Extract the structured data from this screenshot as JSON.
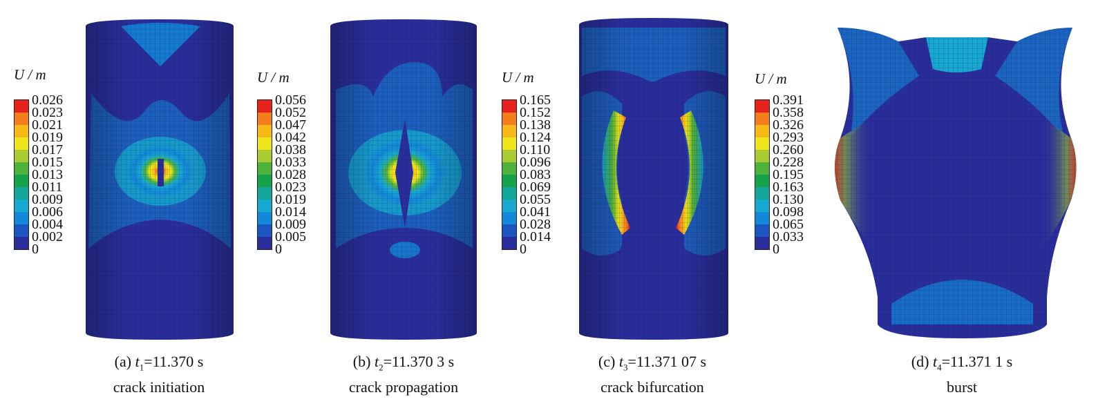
{
  "colors": [
    "#2a2e9a",
    "#1c55bf",
    "#1288d8",
    "#18a8d0",
    "#13a79a",
    "#16a24a",
    "#4db33c",
    "#a8cb32",
    "#eee51a",
    "#f8b917",
    "#f47d1c",
    "#e8221e"
  ],
  "panels": [
    {
      "legend_title": "U / m",
      "ticks": [
        "0.026",
        "0.023",
        "0.021",
        "0.019",
        "0.017",
        "0.015",
        "0.013",
        "0.011",
        "0.009",
        "0.006",
        "0.004",
        "0.002",
        "0"
      ],
      "caption_label": "(a)",
      "time_var": "t",
      "time_sub": "1",
      "time_value": "=11.370 s",
      "stage": "crack initiation"
    },
    {
      "legend_title": "U / m",
      "ticks": [
        "0.056",
        "0.052",
        "0.047",
        "0.042",
        "0.038",
        "0.033",
        "0.028",
        "0.023",
        "0.019",
        "0.014",
        "0.009",
        "0.005",
        "0"
      ],
      "caption_label": "(b)",
      "time_var": "t",
      "time_sub": "2",
      "time_value": "=11.370 3 s",
      "stage": "crack propagation"
    },
    {
      "legend_title": "U / m",
      "ticks": [
        "0.165",
        "0.152",
        "0.138",
        "0.124",
        "0.110",
        "0.096",
        "0.083",
        "0.069",
        "0.055",
        "0.041",
        "0.028",
        "0.014",
        "0"
      ],
      "caption_label": "(c)",
      "time_var": "t",
      "time_sub": "3",
      "time_value": "=11.371 07 s",
      "stage": "crack bifurcation"
    },
    {
      "legend_title": "U / m",
      "ticks": [
        "0.391",
        "0.358",
        "0.326",
        "0.293",
        "0.260",
        "0.228",
        "0.195",
        "0.163",
        "0.130",
        "0.098",
        "0.065",
        "0.033",
        "0"
      ],
      "caption_label": "(d)",
      "time_var": "t",
      "time_sub": "4",
      "time_value": "=11.371 1 s",
      "stage": "burst"
    }
  ]
}
